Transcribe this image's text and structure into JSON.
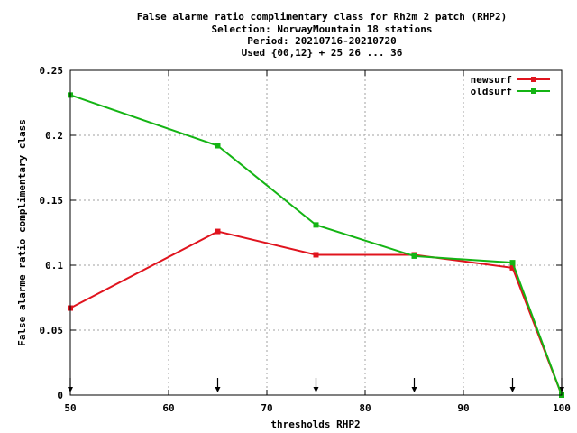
{
  "chart_data": {
    "type": "line",
    "title_lines": [
      "False alarme ratio complimentary class  for Rh2m 2 patch (RHP2)",
      "Selection: NorwayMountain     18 stations",
      "Period: 20210716-20210720",
      "Used {00,12} + 25 26 ... 36"
    ],
    "xlabel": "thresholds RHP2",
    "ylabel": "False alarme ratio complimentary class",
    "xlim": [
      50,
      100
    ],
    "ylim": [
      0,
      0.25
    ],
    "xticks": [
      50,
      60,
      70,
      80,
      90,
      100
    ],
    "yticks": [
      0,
      0.05,
      0.1,
      0.15,
      0.2,
      0.25
    ],
    "xtick_labels": [
      "50",
      "60",
      "70",
      "80",
      "90",
      "100"
    ],
    "ytick_labels": [
      "0",
      "0.05",
      "0.1",
      "0.15",
      "0.2",
      "0.25"
    ],
    "grid": true,
    "legend_position": "top-right",
    "threshold_markers": [
      50,
      65,
      75,
      85,
      95,
      100
    ],
    "series": [
      {
        "name": "newsurf",
        "color": "#e0141e",
        "x": [
          50,
          65,
          75,
          85,
          95,
          100
        ],
        "y": [
          0.067,
          0.126,
          0.108,
          0.108,
          0.098,
          0.0
        ]
      },
      {
        "name": "oldsurf",
        "color": "#14b414",
        "x": [
          50,
          65,
          75,
          85,
          95,
          100
        ],
        "y": [
          0.231,
          0.192,
          0.131,
          0.107,
          0.102,
          0.0
        ]
      }
    ]
  }
}
